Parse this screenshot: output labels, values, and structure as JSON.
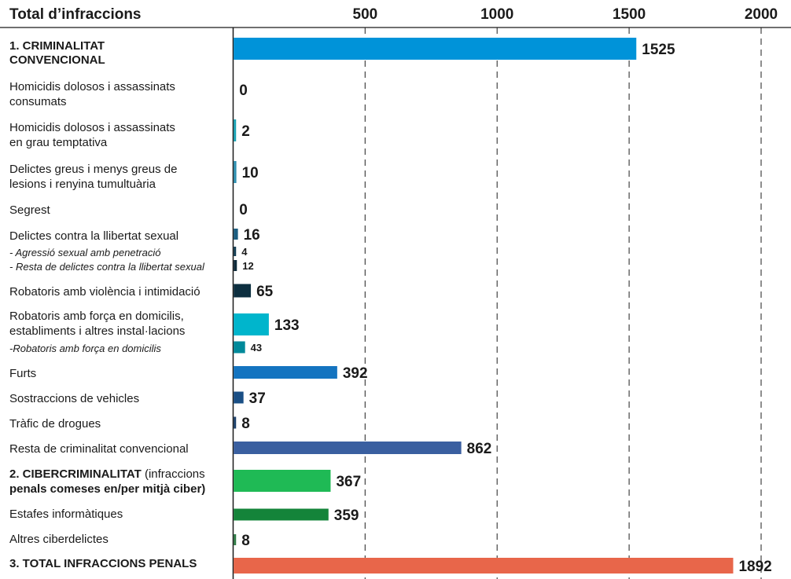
{
  "chart_data": {
    "type": "bar",
    "orientation": "horizontal",
    "title": "Total d’infraccions",
    "xlim": [
      0,
      2000
    ],
    "ticks": [
      500,
      1000,
      1500,
      2000
    ],
    "grid": true,
    "rows": [
      {
        "label": [
          "1. CRIMINALITAT",
          "CONVENCIONAL"
        ],
        "value": 1525,
        "color": "#0093d9",
        "style": "main"
      },
      {
        "label": [
          "Homicidis dolosos i assassinats",
          "consumats"
        ],
        "value": 0,
        "color": "#1a9fb0",
        "style": "normal"
      },
      {
        "label": [
          "Homicidis dolosos i assassinats",
          "en grau temptativa"
        ],
        "value": 2,
        "color": "#1aa3b5",
        "style": "normal"
      },
      {
        "label": [
          "Delictes greus i menys greus de",
          "lesions i renyina tumultuària"
        ],
        "value": 10,
        "color": "#2e8fb0",
        "style": "normal"
      },
      {
        "label": [
          "Segrest"
        ],
        "value": 0,
        "color": "#1a5f8a",
        "style": "normal"
      },
      {
        "label": [
          "Delictes contra la llibertat sexual"
        ],
        "value": 16,
        "color": "#1b5d80",
        "style": "normal"
      },
      {
        "label": [
          "- Agressió sexual amb penetració"
        ],
        "value": 4,
        "color": "#123c52",
        "style": "sub"
      },
      {
        "label": [
          "- Resta de delictes contra la llibertat sexual"
        ],
        "value": 12,
        "color": "#0e2a3a",
        "style": "sub"
      },
      {
        "label": [
          "Robatoris amb violència i intimidació"
        ],
        "value": 65,
        "color": "#0d2f40",
        "style": "normal"
      },
      {
        "label": [
          "Robatoris amb força en domicilis,",
          "establiments i altres instal·lacions"
        ],
        "value": 133,
        "color": "#00b5cc",
        "style": "normal"
      },
      {
        "label": [
          "-Robatoris amb força en domicilis"
        ],
        "value": 43,
        "color": "#00899a",
        "style": "sub"
      },
      {
        "label": [
          "Furts"
        ],
        "value": 392,
        "color": "#1474c0",
        "style": "normal"
      },
      {
        "label": [
          "Sostraccions de vehicles"
        ],
        "value": 37,
        "color": "#1a4f85",
        "style": "normal"
      },
      {
        "label": [
          "Tràfic de drogues"
        ],
        "value": 8,
        "color": "#1b3f6a",
        "style": "normal"
      },
      {
        "label": [
          "Resta de criminalitat convencional"
        ],
        "value": 862,
        "color": "#3a5fa0",
        "style": "normal"
      },
      {
        "label": [
          "2. CIBERCRIMINALITAT",
          "penals comeses en/per mitjà ciber)"
        ],
        "label_suffix": " (infraccions",
        "value": 367,
        "color": "#1fba55",
        "style": "main"
      },
      {
        "label": [
          "Estafes informàtiques"
        ],
        "value": 359,
        "color": "#14843a",
        "style": "normal"
      },
      {
        "label": [
          "Altres ciberdelictes"
        ],
        "value": 8,
        "color": "#2f7a45",
        "style": "normal"
      },
      {
        "label": [
          "3. TOTAL INFRACCIONS PENALS"
        ],
        "value": 1892,
        "color": "#e8664a",
        "style": "main"
      }
    ]
  }
}
